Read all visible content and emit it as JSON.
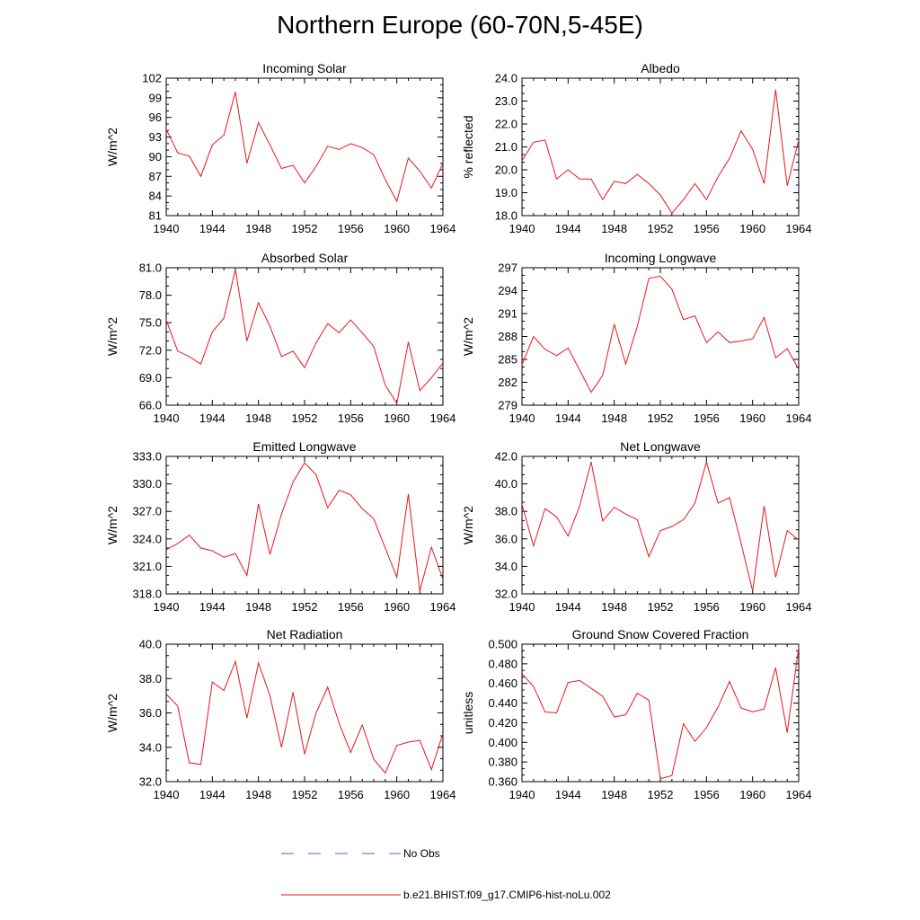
{
  "title": "Northern Europe (60-70N,5-45E)",
  "colors": {
    "model": "#e8161e",
    "obs": "#5a5ad2",
    "axis": "#000000"
  },
  "legend": {
    "obs_label": "No Obs",
    "model_label": "b.e21.BHIST.f09_g17.CMIP6-hist-noLu.002"
  },
  "chart_data": [
    {
      "type": "line",
      "title": "Incoming Solar",
      "ylabel": "W/m^2",
      "xlim": [
        1940,
        1964
      ],
      "ylim": [
        81,
        102
      ],
      "xticks": [
        "1940",
        "1944",
        "1948",
        "1952",
        "1956",
        "1960",
        "1964"
      ],
      "yticks": [
        "81",
        "84",
        "87",
        "90",
        "93",
        "96",
        "99",
        "102"
      ],
      "grid": false,
      "series": [
        {
          "x": [
            1940,
            1941,
            1942,
            1943,
            1944,
            1945,
            1946,
            1947,
            1948,
            1949,
            1950,
            1951,
            1952,
            1953,
            1954,
            1955,
            1956,
            1957,
            1958,
            1959,
            1960,
            1961,
            1962,
            1963,
            1964
          ],
          "y": [
            94.2,
            90.6,
            90.1,
            87.0,
            91.8,
            93.3,
            99.9,
            89.0,
            95.2,
            91.8,
            88.2,
            88.7,
            86.0,
            88.5,
            91.6,
            91.1,
            92.0,
            91.4,
            90.3,
            86.5,
            83.2,
            89.8,
            87.8,
            85.2,
            89.0
          ]
        }
      ]
    },
    {
      "type": "line",
      "title": "Albedo",
      "ylabel": "% reflected",
      "xlim": [
        1940,
        1964
      ],
      "ylim": [
        18.0,
        24.0
      ],
      "xticks": [
        "1940",
        "1944",
        "1948",
        "1952",
        "1956",
        "1960",
        "1964"
      ],
      "yticks": [
        "18.0",
        "19.0",
        "20.0",
        "21.0",
        "22.0",
        "23.0",
        "24.0"
      ],
      "grid": false,
      "series": [
        {
          "x": [
            1940,
            1941,
            1942,
            1943,
            1944,
            1945,
            1946,
            1947,
            1948,
            1949,
            1950,
            1951,
            1952,
            1953,
            1954,
            1955,
            1956,
            1957,
            1958,
            1959,
            1960,
            1961,
            1962,
            1963,
            1964
          ],
          "y": [
            20.4,
            21.2,
            21.3,
            19.6,
            20.0,
            19.6,
            19.6,
            18.7,
            19.5,
            19.4,
            19.8,
            19.4,
            18.9,
            18.1,
            18.7,
            19.4,
            18.7,
            19.7,
            20.5,
            21.7,
            20.9,
            19.4,
            23.5,
            19.3,
            21.3
          ]
        }
      ]
    },
    {
      "type": "line",
      "title": "Absorbed Solar",
      "ylabel": "W/m^2",
      "xlim": [
        1940,
        1964
      ],
      "ylim": [
        66.0,
        81.0
      ],
      "xticks": [
        "1940",
        "1944",
        "1948",
        "1952",
        "1956",
        "1960",
        "1964"
      ],
      "yticks": [
        "66.0",
        "69.0",
        "72.0",
        "75.0",
        "78.0",
        "81.0"
      ],
      "grid": false,
      "series": [
        {
          "x": [
            1940,
            1941,
            1942,
            1943,
            1944,
            1945,
            1946,
            1947,
            1948,
            1949,
            1950,
            1951,
            1952,
            1953,
            1954,
            1955,
            1956,
            1957,
            1958,
            1959,
            1960,
            1961,
            1962,
            1963,
            1964
          ],
          "y": [
            75.3,
            71.9,
            71.3,
            70.5,
            74.0,
            75.5,
            80.8,
            73.0,
            77.2,
            74.6,
            71.3,
            71.9,
            70.1,
            72.8,
            74.9,
            73.9,
            75.3,
            73.9,
            72.4,
            68.2,
            66.2,
            72.9,
            67.6,
            69.0,
            70.6
          ]
        }
      ]
    },
    {
      "type": "line",
      "title": "Incoming Longwave",
      "ylabel": "W/m^2",
      "xlim": [
        1940,
        1964
      ],
      "ylim": [
        279,
        297
      ],
      "xticks": [
        "1940",
        "1944",
        "1948",
        "1952",
        "1956",
        "1960",
        "1964"
      ],
      "yticks": [
        "279",
        "282",
        "285",
        "288",
        "291",
        "294",
        "297"
      ],
      "grid": false,
      "series": [
        {
          "x": [
            1940,
            1941,
            1942,
            1943,
            1944,
            1945,
            1946,
            1947,
            1948,
            1949,
            1950,
            1951,
            1952,
            1953,
            1954,
            1955,
            1956,
            1957,
            1958,
            1959,
            1960,
            1961,
            1962,
            1963,
            1964
          ],
          "y": [
            284.3,
            288.0,
            286.3,
            285.5,
            286.5,
            283.6,
            280.7,
            282.9,
            289.6,
            284.4,
            289.3,
            295.6,
            295.9,
            294.2,
            290.2,
            290.7,
            287.2,
            288.6,
            287.2,
            287.4,
            287.7,
            290.5,
            285.2,
            286.4,
            283.7
          ]
        }
      ]
    },
    {
      "type": "line",
      "title": "Emitted Longwave",
      "ylabel": "W/m^2",
      "xlim": [
        1940,
        1964
      ],
      "ylim": [
        318.0,
        333.0
      ],
      "xticks": [
        "1940",
        "1944",
        "1948",
        "1952",
        "1956",
        "1960",
        "1964"
      ],
      "yticks": [
        "318.0",
        "321.0",
        "324.0",
        "327.0",
        "330.0",
        "333.0"
      ],
      "grid": false,
      "series": [
        {
          "x": [
            1940,
            1941,
            1942,
            1943,
            1944,
            1945,
            1946,
            1947,
            1948,
            1949,
            1950,
            1951,
            1952,
            1953,
            1954,
            1955,
            1956,
            1957,
            1958,
            1959,
            1960,
            1961,
            1962,
            1963,
            1964
          ],
          "y": [
            322.8,
            323.5,
            324.4,
            323.0,
            322.7,
            322.0,
            322.4,
            320.0,
            327.8,
            322.3,
            326.7,
            330.2,
            332.3,
            331.0,
            327.4,
            329.3,
            328.8,
            327.3,
            326.2,
            323.0,
            319.8,
            328.9,
            318.3,
            323.1,
            319.6
          ]
        }
      ]
    },
    {
      "type": "line",
      "title": "Net Longwave",
      "ylabel": "W/m^2",
      "xlim": [
        1940,
        1964
      ],
      "ylim": [
        32.0,
        42.0
      ],
      "xticks": [
        "1940",
        "1944",
        "1948",
        "1952",
        "1956",
        "1960",
        "1964"
      ],
      "yticks": [
        "32.0",
        "34.0",
        "36.0",
        "38.0",
        "40.0",
        "42.0"
      ],
      "grid": false,
      "series": [
        {
          "x": [
            1940,
            1941,
            1942,
            1943,
            1944,
            1945,
            1946,
            1947,
            1948,
            1949,
            1950,
            1951,
            1952,
            1953,
            1954,
            1955,
            1956,
            1957,
            1958,
            1959,
            1960,
            1961,
            1962,
            1963,
            1964
          ],
          "y": [
            38.5,
            35.5,
            38.2,
            37.6,
            36.2,
            38.4,
            41.6,
            37.3,
            38.3,
            37.8,
            37.4,
            34.7,
            36.6,
            36.9,
            37.4,
            38.6,
            41.6,
            38.6,
            39.0,
            35.7,
            32.2,
            38.4,
            33.2,
            36.6,
            35.9
          ]
        }
      ]
    },
    {
      "type": "line",
      "title": "Net Radiation",
      "ylabel": "W/m^2",
      "xlim": [
        1940,
        1964
      ],
      "ylim": [
        32.0,
        40.0
      ],
      "xticks": [
        "1940",
        "1944",
        "1948",
        "1952",
        "1956",
        "1960",
        "1964"
      ],
      "yticks": [
        "32.0",
        "34.0",
        "36.0",
        "38.0",
        "40.0"
      ],
      "grid": false,
      "series": [
        {
          "x": [
            1940,
            1941,
            1942,
            1943,
            1944,
            1945,
            1946,
            1947,
            1948,
            1949,
            1950,
            1951,
            1952,
            1953,
            1954,
            1955,
            1956,
            1957,
            1958,
            1959,
            1960,
            1961,
            1962,
            1963,
            1964
          ],
          "y": [
            37.1,
            36.4,
            33.1,
            33.0,
            37.8,
            37.3,
            39.0,
            35.7,
            38.9,
            37.0,
            34.0,
            37.2,
            33.6,
            36.0,
            37.5,
            35.4,
            33.7,
            35.3,
            33.3,
            32.5,
            34.1,
            34.3,
            34.4,
            32.7,
            34.8
          ]
        }
      ]
    },
    {
      "type": "line",
      "title": "Ground Snow Covered Fraction",
      "ylabel": "unitless",
      "xlim": [
        1940,
        1964
      ],
      "ylim": [
        0.36,
        0.5
      ],
      "xticks": [
        "1940",
        "1944",
        "1948",
        "1952",
        "1956",
        "1960",
        "1964"
      ],
      "yticks": [
        "0.360",
        "0.380",
        "0.400",
        "0.420",
        "0.440",
        "0.460",
        "0.480",
        "0.500"
      ],
      "grid": false,
      "series": [
        {
          "x": [
            1940,
            1941,
            1942,
            1943,
            1944,
            1945,
            1946,
            1947,
            1948,
            1949,
            1950,
            1951,
            1952,
            1953,
            1954,
            1955,
            1956,
            1957,
            1958,
            1959,
            1960,
            1961,
            1962,
            1963,
            1964
          ],
          "y": [
            0.47,
            0.457,
            0.431,
            0.43,
            0.461,
            0.463,
            0.455,
            0.447,
            0.426,
            0.428,
            0.45,
            0.443,
            0.363,
            0.366,
            0.419,
            0.401,
            0.415,
            0.436,
            0.462,
            0.435,
            0.431,
            0.434,
            0.476,
            0.41,
            0.497
          ]
        }
      ]
    }
  ]
}
